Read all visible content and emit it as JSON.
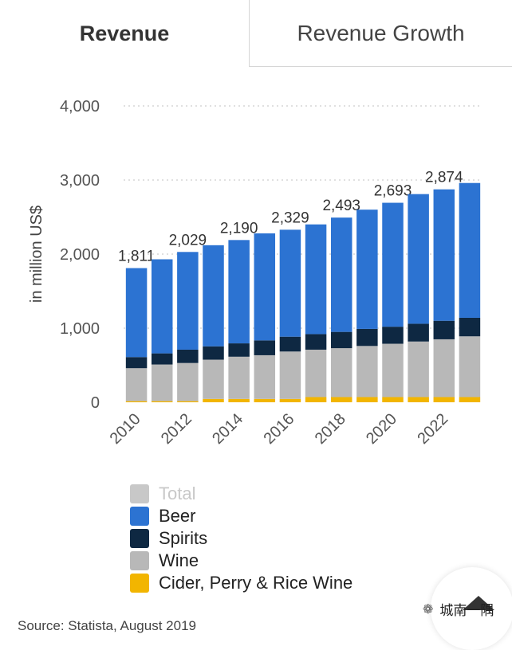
{
  "tabs": [
    {
      "label": "Revenue",
      "active": true
    },
    {
      "label": "Revenue Growth",
      "active": false
    }
  ],
  "chart_data": {
    "type": "bar",
    "stacked": true,
    "ylabel": "in million US$",
    "ylim": [
      0,
      4000
    ],
    "yticks": [
      "0",
      "1,000",
      "2,000",
      "3,000",
      "4,000"
    ],
    "ytick_values": [
      0,
      1000,
      2000,
      3000,
      4000
    ],
    "categories": [
      "2010",
      "2011",
      "2012",
      "2013",
      "2014",
      "2015",
      "2016",
      "2017",
      "2018",
      "2019",
      "2020",
      "2021",
      "2022",
      "2023"
    ],
    "xtick_labels": [
      "2010",
      "",
      "2012",
      "",
      "2014",
      "",
      "2016",
      "",
      "2018",
      "",
      "2020",
      "",
      "2022",
      ""
    ],
    "series": [
      {
        "name": "Cider, Perry & Rice Wine",
        "color": "#f2b500",
        "values": [
          15,
          15,
          15,
          45,
          45,
          45,
          45,
          70,
          70,
          70,
          70,
          70,
          70,
          70
        ]
      },
      {
        "name": "Wine",
        "color": "#b8b8b8",
        "values": [
          445,
          495,
          515,
          530,
          570,
          590,
          640,
          640,
          660,
          690,
          720,
          750,
          780,
          820
        ]
      },
      {
        "name": "Spirits",
        "color": "#0e2842",
        "values": [
          150,
          150,
          180,
          180,
          180,
          200,
          200,
          210,
          220,
          230,
          230,
          240,
          250,
          250
        ]
      },
      {
        "name": "Beer",
        "color": "#2c73d2",
        "values": [
          1201,
          1270,
          1319,
          1365,
          1395,
          1445,
          1444,
          1481,
          1543,
          1610,
          1673,
          1750,
          1774,
          1820
        ]
      }
    ],
    "totals": [
      1811,
      1935,
      2029,
      2120,
      2190,
      2280,
      2329,
      2401,
      2493,
      2600,
      2693,
      2810,
      2874,
      2960
    ],
    "total_labels": [
      "1,811",
      "",
      "2,029",
      "",
      "2,190",
      "",
      "2,329",
      "",
      "2,493",
      "",
      "2,693",
      "",
      "2,874",
      ""
    ],
    "legend": [
      {
        "label": "Total",
        "color": "#c8c8c8",
        "dim": true
      },
      {
        "label": "Beer",
        "color": "#2c73d2"
      },
      {
        "label": "Spirits",
        "color": "#0e2842"
      },
      {
        "label": "Wine",
        "color": "#b8b8b8"
      },
      {
        "label": "Cider, Perry & Rice Wine",
        "color": "#f2b500"
      }
    ],
    "legend_position": "bottom",
    "grid": true,
    "source": "Source: Statista, August 2019"
  },
  "watermark": "城南一隅"
}
